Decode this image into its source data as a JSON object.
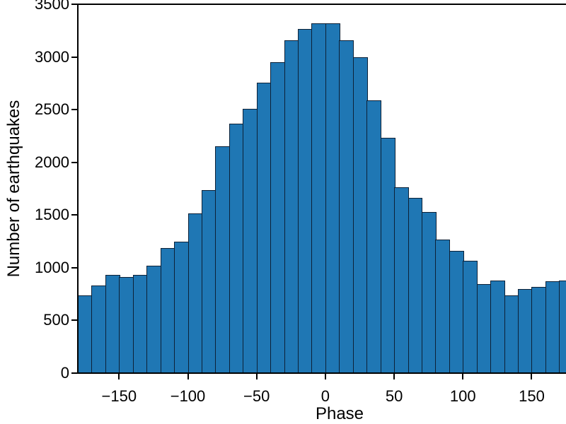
{
  "chart_data": {
    "type": "bar",
    "subtype": "histogram",
    "title": "",
    "xlabel": "Phase",
    "ylabel": "Number of earthquakes",
    "bin_start": -180,
    "bin_width": 10,
    "bin_centers": [
      -175,
      -165,
      -155,
      -145,
      -135,
      -125,
      -115,
      -105,
      -95,
      -85,
      -75,
      -65,
      -55,
      -45,
      -35,
      -25,
      -15,
      -5,
      5,
      15,
      25,
      35,
      45,
      55,
      65,
      75,
      85,
      95,
      105,
      115,
      125,
      135,
      145,
      155,
      165,
      175
    ],
    "values": [
      740,
      830,
      930,
      915,
      935,
      1020,
      1185,
      1245,
      1515,
      1740,
      2150,
      2370,
      2510,
      2755,
      2950,
      3160,
      3265,
      3320,
      3320,
      3155,
      3000,
      2590,
      2230,
      1765,
      1665,
      1530,
      1270,
      1160,
      1065,
      845,
      880,
      740,
      800,
      820,
      875,
      880
    ],
    "xlim": [
      -180,
      180
    ],
    "ylim": [
      0,
      3500
    ],
    "xtick_values": [
      -150,
      -100,
      -50,
      0,
      50,
      100,
      150
    ],
    "xtick_labels": [
      "−150",
      "−100",
      "−50",
      "0",
      "50",
      "100",
      "150"
    ],
    "ytick_values": [
      0,
      500,
      1000,
      1500,
      2000,
      2500,
      3000,
      3500
    ],
    "ytick_labels": [
      "0",
      "500",
      "1000",
      "1500",
      "2000",
      "2500",
      "3000",
      "3500"
    ],
    "grid": "off",
    "legend": "none",
    "bar_fill_color": "#1f77b4",
    "bar_edge_color": "#0d2137",
    "axis_color": "#000000",
    "note": "right side of histogram is clipped at the figure edge"
  }
}
